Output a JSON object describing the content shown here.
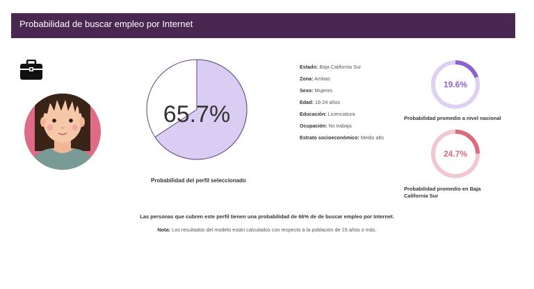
{
  "header": {
    "title": "Probabilidad de buscar empleo por Internet"
  },
  "pie": {
    "value_label": "65.7%",
    "value": 65.7,
    "caption": "Probabilidad del perfil seleccionado",
    "fill_color": "#d9cdf3",
    "stroke_color": "#5b3c80"
  },
  "profile": {
    "estado_k": "Estado:",
    "estado_v": "Baja California Sur",
    "zona_k": "Zona:",
    "zona_v": "Ambas",
    "sexo_k": "Sexo:",
    "sexo_v": "Mujeres",
    "edad_k": "Edad:",
    "edad_v": "18-24 años",
    "educacion_k": "Educación:",
    "educacion_v": "Licenciatura",
    "ocupacion_k": "Ocupación:",
    "ocupacion_v": "No trabaja",
    "estrato_k": "Estrato socioeconómico:",
    "estrato_v": "Medio alto"
  },
  "national": {
    "value_label": "19.6%",
    "value": 19.6,
    "caption": "Probabilidad promedio a nivel nacional",
    "color": "#8a63d2",
    "track": "#ddd0f3"
  },
  "state": {
    "value_label": "24.7%",
    "value": 24.7,
    "caption": "Probabilidad promedio en Baja California Sur",
    "color": "#d96b7c",
    "track": "#f1c8cf"
  },
  "summary": "Las personas que cubren este perfil tienen una probabilidad de 66% de de buscar empleo por Internet.",
  "note": {
    "k": "Nota:",
    "v": "Los resultados del modelo están calculados con respecto a la población de 15 años o más."
  },
  "icons": {
    "briefcase": "briefcase-icon",
    "avatar": "woman-avatar"
  }
}
